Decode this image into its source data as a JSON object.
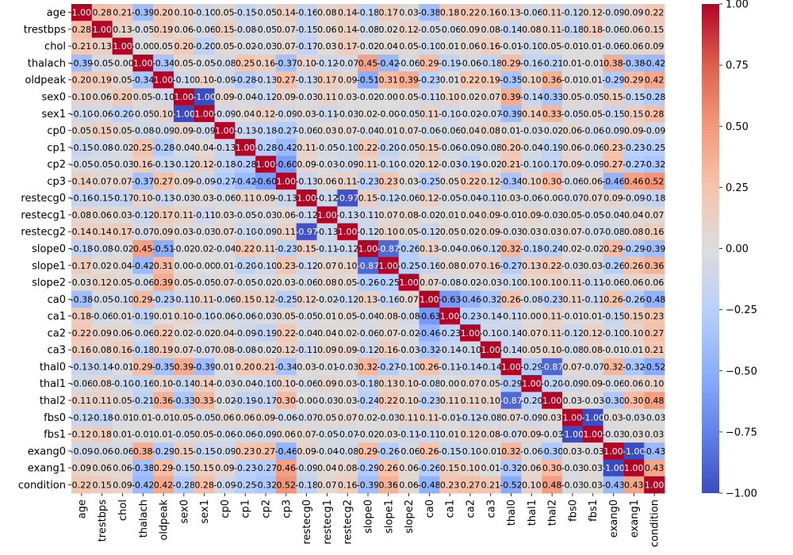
{
  "chart_data": {
    "type": "heatmap",
    "title": "",
    "xlabel": "",
    "ylabel": "",
    "colormap": "coolwarm",
    "value_range": [
      -1.0,
      1.0
    ],
    "labels": [
      "age",
      "trestbps",
      "chol",
      "thalach",
      "oldpeak",
      "sex0",
      "sex1",
      "cp0",
      "cp1",
      "cp2",
      "cp3",
      "restecg0",
      "restecg1",
      "restecg2",
      "slope0",
      "slope1",
      "slope2",
      "ca0",
      "ca1",
      "ca2",
      "ca3",
      "thal0",
      "thal1",
      "thal2",
      "fbs0",
      "fbs1",
      "exang0",
      "exang1",
      "condition"
    ],
    "matrix": [
      [
        1.0,
        0.28,
        0.21,
        -0.39,
        0.2,
        0.1,
        -0.1,
        0.05,
        -0.15,
        -0.05,
        0.14,
        -0.16,
        0.08,
        0.14,
        -0.18,
        0.17,
        0.03,
        -0.38,
        0.18,
        0.22,
        0.16,
        0.13,
        -0.06,
        0.11,
        -0.12,
        0.12,
        -0.09,
        0.09,
        0.22
      ],
      [
        0.28,
        1.0,
        0.13,
        -0.05,
        0.19,
        0.06,
        -0.06,
        0.15,
        -0.08,
        -0.05,
        0.07,
        -0.15,
        0.06,
        0.14,
        -0.08,
        0.02,
        0.12,
        -0.05,
        -0.06,
        0.09,
        0.08,
        -0.14,
        0.08,
        0.11,
        -0.18,
        0.18,
        -0.06,
        0.06,
        0.15
      ],
      [
        0.21,
        0.13,
        1.0,
        -0.0,
        0.05,
        0.2,
        -0.2,
        0.05,
        -0.02,
        -0.03,
        0.07,
        -0.17,
        0.03,
        0.17,
        -0.02,
        0.04,
        0.05,
        -0.1,
        0.01,
        0.06,
        0.16,
        -0.01,
        -0.1,
        0.05,
        -0.01,
        0.01,
        -0.06,
        0.06,
        0.09
      ],
      [
        -0.39,
        -0.05,
        -0.0,
        1.0,
        -0.34,
        0.05,
        -0.05,
        -0.08,
        0.25,
        0.16,
        -0.37,
        0.1,
        -0.12,
        -0.07,
        0.45,
        -0.42,
        -0.06,
        0.29,
        -0.19,
        -0.06,
        -0.18,
        0.29,
        -0.16,
        -0.21,
        0.01,
        -0.01,
        0.38,
        -0.38,
        -0.42
      ],
      [
        0.2,
        0.19,
        0.05,
        -0.34,
        1.0,
        -0.1,
        0.1,
        -0.09,
        -0.28,
        -0.13,
        0.27,
        -0.13,
        0.17,
        0.09,
        -0.51,
        0.31,
        0.39,
        -0.23,
        0.01,
        0.22,
        0.19,
        -0.35,
        0.1,
        0.36,
        -0.01,
        0.01,
        -0.29,
        0.29,
        0.42
      ],
      [
        0.1,
        0.06,
        0.2,
        0.05,
        -0.1,
        1.0,
        -1.0,
        0.09,
        -0.04,
        -0.12,
        0.09,
        -0.03,
        0.11,
        0.03,
        -0.02,
        0.0,
        0.05,
        -0.11,
        0.1,
        0.02,
        0.07,
        0.39,
        -0.14,
        -0.33,
        0.05,
        -0.05,
        0.15,
        -0.15,
        -0.28
      ],
      [
        -0.1,
        -0.06,
        -0.2,
        -0.05,
        0.1,
        -1.0,
        1.0,
        -0.09,
        0.04,
        0.12,
        -0.09,
        0.03,
        -0.11,
        -0.03,
        0.02,
        -0.0,
        -0.05,
        0.11,
        -0.1,
        -0.02,
        -0.07,
        -0.39,
        0.14,
        0.33,
        -0.05,
        0.05,
        -0.15,
        0.15,
        0.28
      ],
      [
        0.05,
        0.15,
        0.05,
        -0.08,
        -0.09,
        0.09,
        -0.09,
        1.0,
        -0.13,
        -0.18,
        -0.27,
        -0.06,
        0.03,
        0.07,
        -0.04,
        0.01,
        0.07,
        -0.06,
        -0.06,
        0.04,
        0.08,
        0.01,
        -0.03,
        -0.02,
        0.06,
        -0.06,
        -0.09,
        0.09,
        -0.09
      ],
      [
        -0.15,
        -0.08,
        -0.02,
        0.25,
        -0.28,
        -0.04,
        0.04,
        -0.13,
        1.0,
        -0.28,
        -0.42,
        0.11,
        -0.05,
        -0.1,
        0.22,
        -0.2,
        -0.05,
        0.15,
        -0.06,
        -0.09,
        -0.08,
        0.2,
        -0.04,
        -0.19,
        0.06,
        -0.06,
        0.23,
        -0.23,
        -0.25
      ],
      [
        -0.05,
        -0.05,
        -0.03,
        0.16,
        -0.13,
        -0.12,
        0.12,
        -0.18,
        -0.28,
        1.0,
        -0.6,
        0.09,
        -0.03,
        -0.09,
        0.11,
        -0.1,
        -0.02,
        0.12,
        -0.03,
        -0.19,
        -0.02,
        0.21,
        -0.1,
        -0.17,
        0.09,
        -0.09,
        0.27,
        -0.27,
        -0.32
      ],
      [
        0.14,
        0.07,
        0.07,
        -0.37,
        0.27,
        0.09,
        -0.09,
        -0.27,
        -0.42,
        -0.6,
        1.0,
        -0.13,
        0.06,
        0.11,
        -0.23,
        0.23,
        0.03,
        -0.25,
        0.05,
        0.22,
        0.12,
        -0.34,
        0.1,
        0.3,
        -0.06,
        0.06,
        -0.46,
        0.46,
        0.52
      ],
      [
        -0.16,
        -0.15,
        -0.17,
        0.1,
        -0.13,
        -0.03,
        0.03,
        -0.06,
        0.11,
        0.09,
        -0.13,
        1.0,
        -0.12,
        -0.97,
        0.15,
        -0.12,
        -0.06,
        0.12,
        -0.05,
        -0.04,
        -0.11,
        0.03,
        -0.06,
        -0.0,
        -0.07,
        0.07,
        0.09,
        -0.09,
        -0.18
      ],
      [
        0.08,
        0.06,
        0.03,
        -0.12,
        0.17,
        0.11,
        -0.11,
        0.03,
        -0.05,
        -0.03,
        0.06,
        -0.12,
        1.0,
        -0.13,
        -0.11,
        0.07,
        0.08,
        -0.02,
        0.01,
        0.04,
        0.09,
        -0.01,
        0.09,
        -0.03,
        0.05,
        -0.05,
        -0.04,
        0.04,
        0.07
      ],
      [
        0.14,
        0.14,
        0.17,
        -0.07,
        0.09,
        0.03,
        -0.03,
        0.07,
        -0.1,
        -0.09,
        0.11,
        -0.97,
        -0.13,
        1.0,
        -0.12,
        0.1,
        0.05,
        -0.12,
        0.05,
        0.02,
        0.09,
        -0.03,
        0.03,
        0.03,
        0.07,
        -0.07,
        -0.08,
        0.08,
        0.16
      ],
      [
        -0.18,
        -0.08,
        -0.02,
        0.45,
        -0.51,
        -0.02,
        0.02,
        -0.04,
        0.22,
        0.11,
        -0.23,
        0.15,
        -0.11,
        -0.12,
        1.0,
        -0.87,
        -0.26,
        0.13,
        -0.04,
        -0.06,
        -0.12,
        0.32,
        -0.18,
        -0.24,
        0.02,
        -0.02,
        0.29,
        -0.29,
        -0.39
      ],
      [
        0.17,
        0.02,
        0.04,
        -0.42,
        0.31,
        0.0,
        -0.0,
        0.01,
        -0.2,
        -0.1,
        0.23,
        -0.12,
        0.07,
        0.1,
        -0.87,
        1.0,
        -0.25,
        -0.16,
        0.08,
        0.07,
        0.16,
        -0.27,
        0.13,
        0.22,
        -0.03,
        0.03,
        -0.26,
        0.26,
        0.36
      ],
      [
        0.03,
        0.12,
        0.05,
        -0.06,
        0.39,
        0.05,
        -0.05,
        0.07,
        -0.05,
        -0.02,
        0.03,
        -0.06,
        0.08,
        0.05,
        -0.26,
        -0.25,
        1.0,
        0.07,
        -0.08,
        -0.02,
        -0.03,
        -0.1,
        0.1,
        0.1,
        0.11,
        -0.11,
        -0.06,
        0.06,
        0.06
      ],
      [
        -0.38,
        -0.05,
        -0.1,
        0.29,
        -0.23,
        -0.11,
        0.11,
        -0.06,
        0.15,
        0.12,
        -0.25,
        0.12,
        -0.02,
        -0.12,
        0.13,
        -0.16,
        0.07,
        1.0,
        -0.63,
        -0.46,
        -0.32,
        0.26,
        -0.08,
        -0.23,
        0.11,
        -0.11,
        0.26,
        -0.26,
        -0.48
      ],
      [
        0.18,
        -0.06,
        0.01,
        -0.19,
        0.01,
        0.1,
        -0.1,
        -0.06,
        -0.06,
        -0.03,
        0.05,
        -0.05,
        0.01,
        0.05,
        -0.04,
        0.08,
        -0.08,
        -0.63,
        1.0,
        -0.23,
        -0.14,
        -0.11,
        0.0,
        0.11,
        -0.01,
        0.01,
        -0.15,
        0.15,
        0.23
      ],
      [
        0.22,
        0.09,
        0.06,
        -0.06,
        0.22,
        0.02,
        -0.02,
        0.04,
        -0.09,
        -0.19,
        0.22,
        -0.04,
        0.04,
        0.02,
        -0.06,
        0.07,
        -0.02,
        -0.46,
        -0.23,
        1.0,
        -0.1,
        -0.14,
        0.07,
        0.11,
        -0.12,
        0.12,
        -0.1,
        0.1,
        0.27
      ],
      [
        0.16,
        0.08,
        0.16,
        -0.18,
        0.19,
        0.07,
        -0.07,
        0.08,
        -0.08,
        -0.02,
        0.12,
        -0.11,
        0.09,
        0.09,
        -0.12,
        0.16,
        -0.03,
        -0.32,
        -0.14,
        -0.1,
        1.0,
        -0.14,
        0.05,
        0.1,
        -0.08,
        0.08,
        -0.01,
        0.01,
        0.21
      ],
      [
        -0.13,
        -0.14,
        -0.01,
        0.29,
        -0.35,
        0.39,
        -0.39,
        0.01,
        0.2,
        0.21,
        -0.34,
        0.03,
        -0.01,
        -0.03,
        0.32,
        -0.27,
        -0.1,
        0.26,
        -0.11,
        -0.14,
        -0.14,
        1.0,
        -0.29,
        -0.87,
        0.07,
        -0.07,
        0.32,
        -0.32,
        -0.52
      ],
      [
        -0.06,
        0.08,
        -0.1,
        -0.16,
        0.1,
        -0.14,
        0.14,
        -0.03,
        -0.04,
        -0.1,
        0.1,
        -0.06,
        0.09,
        0.03,
        -0.18,
        0.13,
        0.1,
        -0.08,
        0.0,
        0.07,
        0.05,
        -0.29,
        1.0,
        -0.2,
        -0.09,
        0.09,
        -0.06,
        0.06,
        0.1
      ],
      [
        0.11,
        0.11,
        0.05,
        -0.21,
        0.36,
        -0.33,
        0.33,
        -0.02,
        -0.19,
        -0.17,
        0.3,
        -0.0,
        -0.03,
        0.03,
        -0.24,
        0.22,
        0.1,
        -0.23,
        0.11,
        0.11,
        0.1,
        -0.87,
        -0.2,
        1.0,
        0.03,
        -0.03,
        -0.3,
        0.3,
        0.48
      ],
      [
        -0.12,
        -0.18,
        -0.01,
        0.01,
        -0.01,
        0.05,
        -0.05,
        0.06,
        0.06,
        0.09,
        -0.06,
        -0.07,
        0.05,
        0.07,
        0.02,
        -0.03,
        0.11,
        0.11,
        -0.01,
        -0.12,
        -0.08,
        0.07,
        -0.09,
        0.03,
        1.0,
        -1.0,
        0.03,
        -0.03,
        -0.03
      ],
      [
        0.12,
        0.18,
        0.01,
        -0.01,
        0.01,
        -0.05,
        0.05,
        -0.06,
        -0.06,
        -0.09,
        0.06,
        0.07,
        -0.05,
        -0.07,
        -0.02,
        0.03,
        -0.11,
        -0.11,
        0.01,
        0.12,
        0.08,
        -0.07,
        0.09,
        -0.03,
        -1.0,
        1.0,
        -0.03,
        0.03,
        0.03
      ],
      [
        -0.09,
        -0.06,
        -0.06,
        0.38,
        -0.29,
        0.15,
        -0.15,
        -0.09,
        0.23,
        0.27,
        -0.46,
        0.09,
        -0.04,
        -0.08,
        0.29,
        -0.26,
        -0.06,
        0.26,
        -0.15,
        -0.1,
        -0.01,
        0.32,
        -0.06,
        -0.3,
        0.03,
        -0.03,
        1.0,
        -1.0,
        -0.43
      ],
      [
        0.09,
        0.06,
        0.06,
        -0.38,
        0.29,
        -0.15,
        0.15,
        0.09,
        -0.23,
        -0.27,
        0.46,
        -0.09,
        0.04,
        0.08,
        -0.29,
        0.26,
        0.06,
        -0.26,
        0.15,
        0.1,
        0.01,
        -0.32,
        0.06,
        0.3,
        -0.03,
        0.03,
        -1.0,
        1.0,
        0.43
      ],
      [
        0.22,
        0.15,
        0.09,
        -0.42,
        0.42,
        -0.28,
        0.28,
        -0.09,
        -0.25,
        -0.32,
        0.52,
        -0.18,
        0.07,
        0.16,
        -0.39,
        0.36,
        0.06,
        -0.48,
        0.23,
        0.27,
        0.21,
        -0.52,
        0.1,
        0.48,
        -0.03,
        0.03,
        -0.43,
        0.43,
        1.0
      ]
    ],
    "colorbar": {
      "ticks": [
        "1.00",
        "0.75",
        "0.50",
        "0.25",
        "0.00",
        "−0.25",
        "−0.50",
        "−0.75",
        "−1.00"
      ],
      "tick_values": [
        1.0,
        0.75,
        0.5,
        0.25,
        0.0,
        -0.25,
        -0.5,
        -0.75,
        -1.0
      ]
    },
    "colors": {
      "low": "#3b4cc0",
      "mid": "#dddddd",
      "high": "#b40426"
    }
  }
}
